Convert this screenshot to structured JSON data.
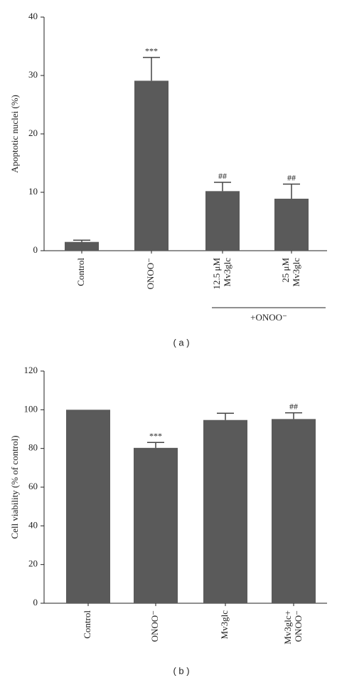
{
  "chart_data": [
    {
      "type": "bar",
      "ylabel": "Apoptotic nuclei (%)",
      "panel_label": "( a )",
      "categories": [
        "Control",
        "ONOO⁻",
        [
          "12.5 μM",
          "Mv3glc"
        ],
        [
          "25 μM",
          "Mv3glc"
        ]
      ],
      "values": [
        1.5,
        29.1,
        10.2,
        8.9
      ],
      "errors": [
        0.3,
        4.0,
        1.5,
        2.5
      ],
      "annotations": [
        null,
        "***",
        "##",
        "##"
      ],
      "group_label": "+ONOO⁻",
      "color": "#5a5a5a",
      "ylim": [
        0,
        40
      ],
      "yticks": [
        0,
        10,
        20,
        30,
        40
      ]
    },
    {
      "type": "bar",
      "ylabel": "Cell viability (% of control)",
      "panel_label": "( b )",
      "categories": [
        "Control",
        "ONOO⁻",
        "Mv3glc",
        [
          "Mv3glc+",
          "ONOO⁻"
        ]
      ],
      "values": [
        100,
        80.3,
        94.7,
        95.2
      ],
      "errors": [
        null,
        2.8,
        3.5,
        3.2
      ],
      "annotations": [
        null,
        "***",
        null,
        "##"
      ],
      "color": "#5a5a5a",
      "ylim": [
        0,
        120
      ],
      "yticks": [
        0,
        20,
        40,
        60,
        80,
        100,
        120
      ]
    }
  ]
}
